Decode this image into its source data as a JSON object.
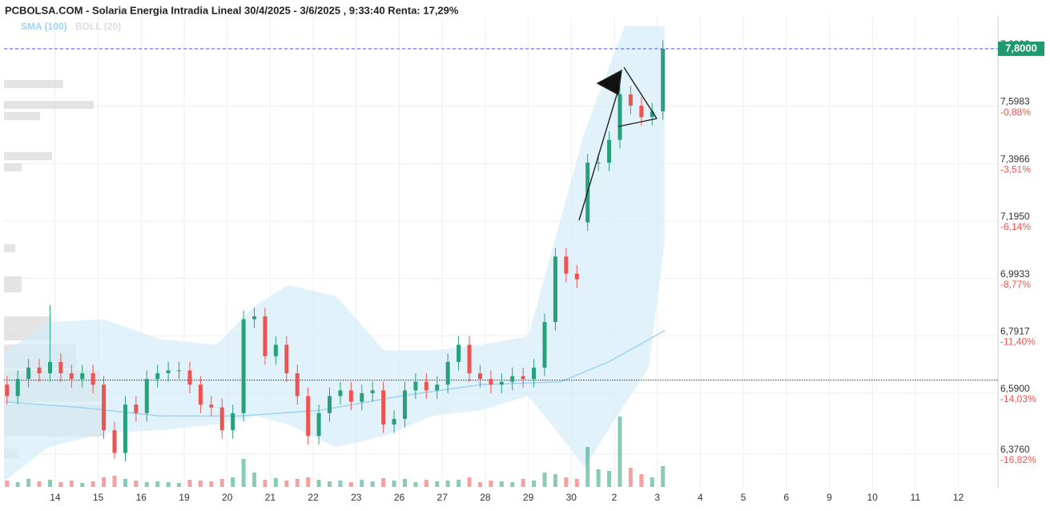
{
  "chart_data": {
    "type": "candlestick",
    "title": "PCBOLSA.COM - Solaria Energia Intradia Lineal 30/4/2025 - 3/6/2025 , 9:33:40 Renta: 17,29%",
    "xlim": [
      -1.19,
      21.92
    ],
    "xticks": [
      {
        "value": 0,
        "label": "14"
      },
      {
        "value": 1,
        "label": "15"
      },
      {
        "value": 2,
        "label": "16"
      },
      {
        "value": 3,
        "label": "19"
      },
      {
        "value": 4,
        "label": "20"
      },
      {
        "value": 5,
        "label": "21"
      },
      {
        "value": 6,
        "label": "22"
      },
      {
        "value": 7,
        "label": "23"
      },
      {
        "value": 8,
        "label": "26"
      },
      {
        "value": 9,
        "label": "27"
      },
      {
        "value": 10,
        "label": "28"
      },
      {
        "value": 11,
        "label": "29"
      },
      {
        "value": 12,
        "label": "30"
      },
      {
        "value": 13,
        "label": "2"
      },
      {
        "value": 14,
        "label": "3"
      },
      {
        "value": 15,
        "label": "4"
      },
      {
        "value": 16,
        "label": "5"
      },
      {
        "value": 17,
        "label": "6"
      },
      {
        "value": 18,
        "label": "9"
      },
      {
        "value": 19,
        "label": "10"
      },
      {
        "value": 20,
        "label": "11"
      },
      {
        "value": 21,
        "label": "12"
      }
    ],
    "ylim": [
      6.255,
      7.915
    ],
    "yticks": [
      {
        "value": 7.8,
        "label": "7,8000"
      },
      {
        "value": 7.5983,
        "label": "7,5983"
      },
      {
        "value": 7.3966,
        "label": "7,3966"
      },
      {
        "value": 7.195,
        "label": "7,1950"
      },
      {
        "value": 6.9933,
        "label": "6,9933"
      },
      {
        "value": 6.7917,
        "label": "6,7917"
      },
      {
        "value": 6.59,
        "label": "6,5900"
      },
      {
        "value": 6.376,
        "label": "6,3760"
      }
    ],
    "y2lim": [
      -18.4,
      3.26
    ],
    "y2ticks": [
      {
        "value": -0.88,
        "label": "-0,88%"
      },
      {
        "value": -3.51,
        "label": "-3,51%"
      },
      {
        "value": -6.14,
        "label": "-6,14%"
      },
      {
        "value": -8.77,
        "label": "-8,77%"
      },
      {
        "value": -11.4,
        "label": "-11,40%"
      },
      {
        "value": -14.03,
        "label": "-14,03%"
      },
      {
        "value": -16.82,
        "label": "-16,82%"
      }
    ],
    "grid": true,
    "up_color": "#26a17b",
    "down_color": "#ef5350",
    "last_price": {
      "value": 7.8,
      "label": "7,8000"
    },
    "ref_line": 6.636,
    "x": [
      -1.12,
      -0.87,
      -0.62,
      -0.37,
      -0.12,
      0.13,
      0.38,
      0.63,
      0.88,
      1.13,
      1.38,
      1.63,
      1.88,
      2.13,
      2.38,
      2.63,
      2.88,
      3.13,
      3.38,
      3.63,
      3.88,
      4.13,
      4.38,
      4.63,
      4.88,
      5.13,
      5.38,
      5.63,
      5.88,
      6.13,
      6.38,
      6.63,
      6.88,
      7.13,
      7.38,
      7.63,
      7.88,
      8.13,
      8.38,
      8.63,
      8.88,
      9.13,
      9.38,
      9.63,
      9.88,
      10.13,
      10.38,
      10.63,
      10.88,
      11.13,
      11.38,
      11.63,
      11.88,
      12.13,
      12.38,
      12.63,
      12.88,
      13.13,
      13.38,
      13.63,
      13.88,
      14.13
    ],
    "open": [
      6.62,
      6.58,
      6.64,
      6.68,
      6.66,
      6.7,
      6.66,
      6.64,
      6.66,
      6.62,
      6.46,
      6.38,
      6.55,
      6.52,
      6.64,
      6.66,
      6.67,
      6.67,
      6.62,
      6.55,
      6.54,
      6.46,
      6.52,
      6.85,
      6.86,
      6.72,
      6.76,
      6.66,
      6.58,
      6.44,
      6.52,
      6.58,
      6.6,
      6.56,
      6.59,
      6.6,
      6.48,
      6.5,
      6.6,
      6.63,
      6.6,
      6.62,
      6.7,
      6.76,
      6.66,
      6.64,
      6.62,
      6.63,
      6.65,
      6.64,
      6.68,
      6.84,
      7.07,
      7.01,
      7.19,
      7.4,
      7.4,
      7.48,
      7.64,
      7.6,
      7.56,
      7.58
    ],
    "high": [
      6.65,
      6.67,
      6.71,
      6.71,
      6.9,
      6.73,
      6.69,
      6.69,
      6.69,
      6.65,
      6.49,
      6.58,
      6.58,
      6.67,
      6.69,
      6.7,
      6.7,
      6.7,
      6.65,
      6.58,
      6.57,
      6.55,
      6.88,
      6.89,
      6.89,
      6.79,
      6.79,
      6.69,
      6.61,
      6.55,
      6.61,
      6.63,
      6.63,
      6.62,
      6.63,
      6.63,
      6.53,
      6.63,
      6.66,
      6.66,
      6.65,
      6.73,
      6.79,
      6.79,
      6.69,
      6.67,
      6.66,
      6.68,
      6.68,
      6.71,
      6.87,
      7.1,
      7.1,
      7.04,
      7.43,
      7.43,
      7.51,
      7.67,
      7.67,
      7.63,
      7.61,
      7.83
    ],
    "low": [
      6.55,
      6.55,
      6.61,
      6.63,
      6.63,
      6.63,
      6.61,
      6.61,
      6.59,
      6.43,
      6.36,
      6.35,
      6.49,
      6.49,
      6.61,
      6.63,
      6.64,
      6.59,
      6.52,
      6.51,
      6.43,
      6.43,
      6.49,
      6.82,
      6.69,
      6.69,
      6.63,
      6.55,
      6.41,
      6.41,
      6.49,
      6.55,
      6.53,
      6.53,
      6.56,
      6.45,
      6.45,
      6.47,
      6.57,
      6.57,
      6.57,
      6.59,
      6.67,
      6.63,
      6.61,
      6.59,
      6.59,
      6.6,
      6.61,
      6.61,
      6.65,
      6.81,
      6.98,
      6.96,
      7.16,
      7.37,
      7.37,
      7.45,
      7.57,
      7.53,
      7.53,
      7.55
    ],
    "close": [
      6.58,
      6.64,
      6.68,
      6.66,
      6.7,
      6.66,
      6.64,
      6.66,
      6.62,
      6.46,
      6.38,
      6.55,
      6.52,
      6.64,
      6.66,
      6.67,
      6.67,
      6.62,
      6.55,
      6.54,
      6.46,
      6.52,
      6.85,
      6.86,
      6.72,
      6.76,
      6.66,
      6.58,
      6.44,
      6.52,
      6.58,
      6.6,
      6.56,
      6.59,
      6.6,
      6.48,
      6.5,
      6.6,
      6.63,
      6.6,
      6.62,
      6.7,
      6.76,
      6.66,
      6.64,
      6.62,
      6.63,
      6.65,
      6.64,
      6.68,
      6.84,
      7.07,
      7.01,
      6.99,
      7.4,
      7.4,
      7.48,
      7.64,
      7.6,
      7.56,
      7.58,
      7.8
    ],
    "volume": [
      8,
      6,
      10,
      7,
      9,
      6,
      8,
      5,
      7,
      12,
      14,
      10,
      8,
      6,
      7,
      6,
      5,
      9,
      8,
      7,
      10,
      12,
      35,
      18,
      9,
      11,
      8,
      10,
      12,
      9,
      7,
      8,
      6,
      9,
      7,
      11,
      8,
      10,
      6,
      9,
      7,
      8,
      9,
      12,
      6,
      8,
      7,
      6,
      10,
      8,
      18,
      16,
      12,
      10,
      50,
      22,
      20,
      88,
      24,
      16,
      12,
      26
    ],
    "sma": {
      "name": "SMA (100)",
      "color": "#9fd3f5",
      "x": [
        -1.19,
        0.58,
        2.44,
        4.3,
        6.16,
        8.03,
        9.89,
        11.75,
        12.87,
        14.17
      ],
      "values": [
        6.56,
        6.54,
        6.51,
        6.51,
        6.53,
        6.58,
        6.62,
        6.63,
        6.7,
        6.81
      ]
    },
    "boll": {
      "name": "BOLL (20)",
      "color": "#d6ecfa",
      "x": [
        -1.19,
        -0.17,
        1.14,
        2.44,
        3.74,
        4.67,
        5.42,
        6.54,
        7.65,
        8.77,
        9.89,
        11.0,
        11.75,
        12.31,
        13.24,
        13.8,
        14.17
      ],
      "upper": [
        6.73,
        6.84,
        6.85,
        6.78,
        6.76,
        6.9,
        6.97,
        6.93,
        6.74,
        6.74,
        6.76,
        6.79,
        7.2,
        7.51,
        7.88,
        7.88,
        7.88
      ],
      "lower": [
        6.28,
        6.4,
        6.45,
        6.46,
        6.48,
        6.51,
        6.48,
        6.4,
        6.44,
        6.51,
        6.53,
        6.58,
        6.44,
        6.33,
        6.55,
        6.68,
        7.12
      ]
    }
  }
}
